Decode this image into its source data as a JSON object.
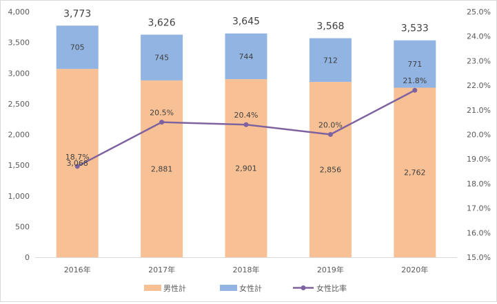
{
  "chart_data": {
    "type": "bar",
    "stacked": true,
    "categories": [
      "2016年",
      "2017年",
      "2018年",
      "2019年",
      "2020年"
    ],
    "series": [
      {
        "name": "男性計",
        "type": "bar",
        "axis": "left",
        "color": "#f8c195",
        "values": [
          3068,
          2881,
          2901,
          2856,
          2762
        ],
        "labels": [
          "3,068",
          "2,881",
          "2,901",
          "2,856",
          "2,762"
        ]
      },
      {
        "name": "女性計",
        "type": "bar",
        "axis": "left",
        "color": "#92b4e2",
        "values": [
          705,
          745,
          744,
          712,
          771
        ],
        "labels": [
          "705",
          "745",
          "744",
          "712",
          "771"
        ]
      },
      {
        "name": "女性比率",
        "type": "line",
        "axis": "right",
        "color": "#7e62a0",
        "values": [
          18.7,
          20.5,
          20.4,
          20.0,
          21.8
        ],
        "labels": [
          "18.7%",
          "20.5%",
          "20.4%",
          "20.0%",
          "21.8%"
        ]
      }
    ],
    "totals": [
      3773,
      3626,
      3645,
      3568,
      3533
    ],
    "total_labels": [
      "3,773",
      "3,626",
      "3,645",
      "3,568",
      "3,533"
    ],
    "y_left": {
      "min": 0,
      "max": 4000,
      "step": 500,
      "ticks": [
        "0",
        "500",
        "1,000",
        "1,500",
        "2,000",
        "2,500",
        "3,000",
        "3,500",
        "4,000"
      ]
    },
    "y_right": {
      "min": 15.0,
      "max": 25.0,
      "step": 1.0,
      "ticks": [
        "15.0%",
        "16.0%",
        "17.0%",
        "18.0%",
        "19.0%",
        "20.0%",
        "21.0%",
        "22.0%",
        "23.0%",
        "24.0%",
        "25.0%"
      ]
    },
    "grid": false,
    "legend_position": "bottom"
  }
}
